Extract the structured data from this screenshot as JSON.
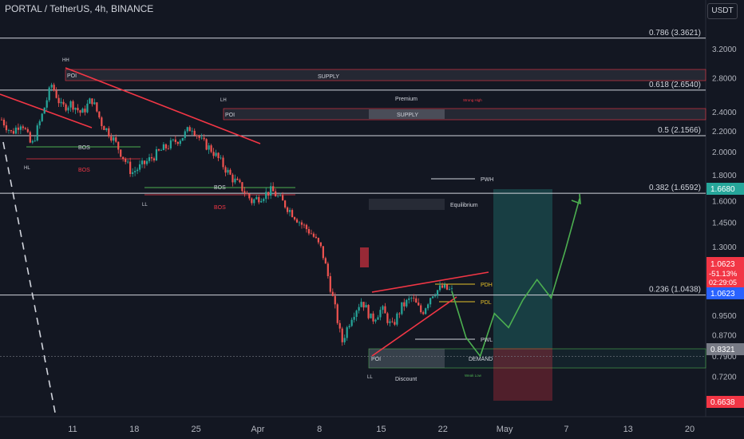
{
  "header": {
    "symbol_title": "PORTAL / TetherUS, 4h, BINANCE",
    "unit": "USDT"
  },
  "colors": {
    "background": "#131722",
    "candle_up": "#26a69a",
    "candle_down": "#ef5350",
    "trend_line": "#f23645",
    "projection": "#4caf50",
    "level_line": "#d1d4dc",
    "pdh_pdl": "#e6c229",
    "last_price_badge": "#2962ff",
    "change_badge": "#f23645",
    "target_badge": "#26a69a",
    "stop_badge": "#f23645"
  },
  "chart_data": {
    "type": "candlestick",
    "symbol": "PORTAL / TetherUS",
    "interval": "4h",
    "exchange": "BINANCE",
    "y_scale": "log",
    "ylim": [
      0.6,
      4.0
    ],
    "x_tick_labels": [
      "11",
      "18",
      "25",
      "Apr",
      "8",
      "15",
      "22",
      "May",
      "7",
      "13",
      "20"
    ],
    "y_tick_labels": [
      "3.2000",
      "2.8000",
      "2.4000",
      "2.2000",
      "2.0000",
      "1.8000",
      "1.6000",
      "1.4500",
      "1.3000",
      "0.9500",
      "0.8700",
      "0.7900",
      "0.7200"
    ],
    "price_path": [
      {
        "t": 0,
        "p": 2.32
      },
      {
        "t": 3,
        "p": 2.18
      },
      {
        "t": 6,
        "p": 2.3
      },
      {
        "t": 9,
        "p": 2.05
      },
      {
        "t": 12,
        "p": 2.35
      },
      {
        "t": 15,
        "p": 2.72
      },
      {
        "t": 18,
        "p": 2.45
      },
      {
        "t": 21,
        "p": 2.5
      },
      {
        "t": 24,
        "p": 2.38
      },
      {
        "t": 27,
        "p": 2.55
      },
      {
        "t": 30,
        "p": 2.28
      },
      {
        "t": 33,
        "p": 2.15
      },
      {
        "t": 36,
        "p": 1.98
      },
      {
        "t": 39,
        "p": 1.82
      },
      {
        "t": 42,
        "p": 1.88
      },
      {
        "t": 45,
        "p": 1.95
      },
      {
        "t": 48,
        "p": 2.02
      },
      {
        "t": 51,
        "p": 2.08
      },
      {
        "t": 54,
        "p": 2.14
      },
      {
        "t": 57,
        "p": 2.25
      },
      {
        "t": 60,
        "p": 2.1
      },
      {
        "t": 63,
        "p": 2.02
      },
      {
        "t": 66,
        "p": 1.9
      },
      {
        "t": 69,
        "p": 1.78
      },
      {
        "t": 72,
        "p": 1.7
      },
      {
        "t": 75,
        "p": 1.6
      },
      {
        "t": 78,
        "p": 1.64
      },
      {
        "t": 81,
        "p": 1.68
      },
      {
        "t": 84,
        "p": 1.6
      },
      {
        "t": 87,
        "p": 1.52
      },
      {
        "t": 90,
        "p": 1.44
      },
      {
        "t": 93,
        "p": 1.38
      },
      {
        "t": 96,
        "p": 1.28
      },
      {
        "t": 99,
        "p": 1.05
      },
      {
        "t": 102,
        "p": 0.84
      },
      {
        "t": 105,
        "p": 0.95
      },
      {
        "t": 108,
        "p": 1.02
      },
      {
        "t": 111,
        "p": 0.93
      },
      {
        "t": 114,
        "p": 0.98
      },
      {
        "t": 117,
        "p": 0.9
      },
      {
        "t": 120,
        "p": 0.99
      },
      {
        "t": 123,
        "p": 1.03
      },
      {
        "t": 126,
        "p": 0.96
      },
      {
        "t": 129,
        "p": 1.05
      },
      {
        "t": 132,
        "p": 1.08
      },
      {
        "t": 135,
        "p": 1.0623
      }
    ],
    "fib_levels": [
      {
        "label": "0.786 (3.3621)",
        "value": 3.3621
      },
      {
        "label": "0.618 (2.6540)",
        "value": 2.654
      },
      {
        "label": "0.5 (2.1566)",
        "value": 2.1566
      },
      {
        "label": "0.382 (1.6592)",
        "value": 1.6592
      },
      {
        "label": "0.236 (1.0438)",
        "value": 1.0438
      }
    ],
    "projection_path": [
      1.0623,
      0.86,
      0.79,
      0.96,
      0.9,
      1.02,
      1.12,
      1.03,
      1.28,
      1.62
    ],
    "position": {
      "entry": 0.8321,
      "target": 1.668,
      "stop": 0.6638
    },
    "price_badges": {
      "target": "1.6680",
      "last_price": "1.0623",
      "change_pct": "-51.13%",
      "countdown": "02:29:05",
      "last_price_blue": "1.0623",
      "entry": "0.8321",
      "stop": "0.6638"
    },
    "annotations": {
      "hh": "HH",
      "lh": "LH",
      "hl": "HL",
      "ll": "LL",
      "bos": "BOS",
      "poi": "POI",
      "supply": "SUPPLY",
      "demand": "DEMAND",
      "premium": "Premium",
      "equilibrium": "Equilibrium",
      "discount": "Discount",
      "pwh": "PWH",
      "pwl": "PWL",
      "pdh": "PDH",
      "pdl": "PDL",
      "strong_high": "Strong High",
      "weak_low": "Weak Low"
    }
  }
}
